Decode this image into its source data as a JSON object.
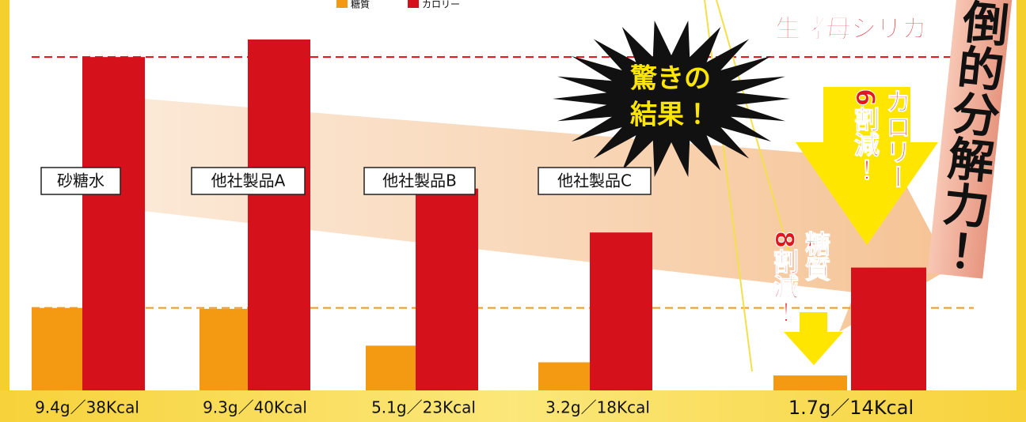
{
  "chart_data": {
    "type": "bar",
    "categories": [
      "砂糖水",
      "他社製品A",
      "他社製品B",
      "他社製品C",
      null
    ],
    "series": [
      {
        "name": "糖質",
        "color": "#f39a12",
        "values": [
          9.4,
          9.3,
          5.1,
          3.2,
          1.7
        ]
      },
      {
        "name": "カロリー",
        "color": "#d5121b",
        "values": [
          38,
          40,
          23,
          18,
          14
        ]
      }
    ],
    "value_labels": [
      "9.4g／38Kcal",
      "9.3g／40Kcal",
      "5.1g／23Kcal",
      "3.2g／18Kcal",
      "1.7g／14Kcal"
    ],
    "ylim": [
      0,
      44.5
    ],
    "annotations": {
      "burst": [
        "驚きの",
        "結果！"
      ],
      "product": "『生酵母シリカ』",
      "headline": "倒的分解力！",
      "calorie_note": [
        "カロリー",
        "6割減！"
      ],
      "sugar_note": [
        "糖質",
        "8割減！"
      ]
    }
  }
}
